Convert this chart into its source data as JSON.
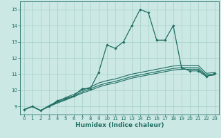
{
  "title": "",
  "xlabel": "Humidex (Indice chaleur)",
  "bg_color": "#cce8e4",
  "grid_color": "#aad4cc",
  "line_color": "#1e6e62",
  "xlim": [
    -0.5,
    23.5
  ],
  "ylim": [
    8.5,
    15.5
  ],
  "xticks": [
    0,
    1,
    2,
    3,
    4,
    5,
    6,
    7,
    8,
    9,
    10,
    11,
    12,
    13,
    14,
    15,
    16,
    17,
    18,
    19,
    20,
    21,
    22,
    23
  ],
  "yticks": [
    9,
    10,
    11,
    12,
    13,
    14,
    15
  ],
  "main_line_x": [
    0,
    1,
    2,
    3,
    4,
    5,
    6,
    7,
    8,
    9,
    10,
    11,
    12,
    13,
    14,
    15,
    16,
    17,
    18,
    19,
    20,
    21,
    22,
    23
  ],
  "main_line_y": [
    8.8,
    9.0,
    8.75,
    9.0,
    9.35,
    9.5,
    9.65,
    10.1,
    10.1,
    11.1,
    12.8,
    12.6,
    13.0,
    14.0,
    15.0,
    14.8,
    13.1,
    13.1,
    14.0,
    11.4,
    11.2,
    11.2,
    10.85,
    11.05
  ],
  "flat_lines_x": [
    0,
    1,
    2,
    3,
    4,
    5,
    6,
    7,
    8,
    9,
    10,
    11,
    12,
    13,
    14,
    15,
    16,
    17,
    18,
    19,
    20,
    21,
    22,
    23
  ],
  "flat_lines": [
    [
      8.8,
      9.0,
      8.75,
      9.05,
      9.3,
      9.55,
      9.75,
      10.0,
      10.2,
      10.45,
      10.6,
      10.7,
      10.85,
      11.0,
      11.1,
      11.2,
      11.3,
      11.4,
      11.5,
      11.55,
      11.55,
      11.55,
      11.05,
      11.1
    ],
    [
      8.8,
      9.0,
      8.75,
      9.0,
      9.25,
      9.45,
      9.65,
      9.9,
      10.1,
      10.3,
      10.45,
      10.55,
      10.7,
      10.85,
      10.95,
      11.05,
      11.15,
      11.25,
      11.35,
      11.4,
      11.4,
      11.4,
      10.95,
      11.0
    ],
    [
      8.8,
      9.0,
      8.75,
      9.0,
      9.2,
      9.4,
      9.6,
      9.82,
      10.0,
      10.2,
      10.35,
      10.45,
      10.6,
      10.75,
      10.85,
      10.95,
      11.05,
      11.15,
      11.25,
      11.3,
      11.3,
      11.3,
      10.88,
      10.95
    ]
  ]
}
